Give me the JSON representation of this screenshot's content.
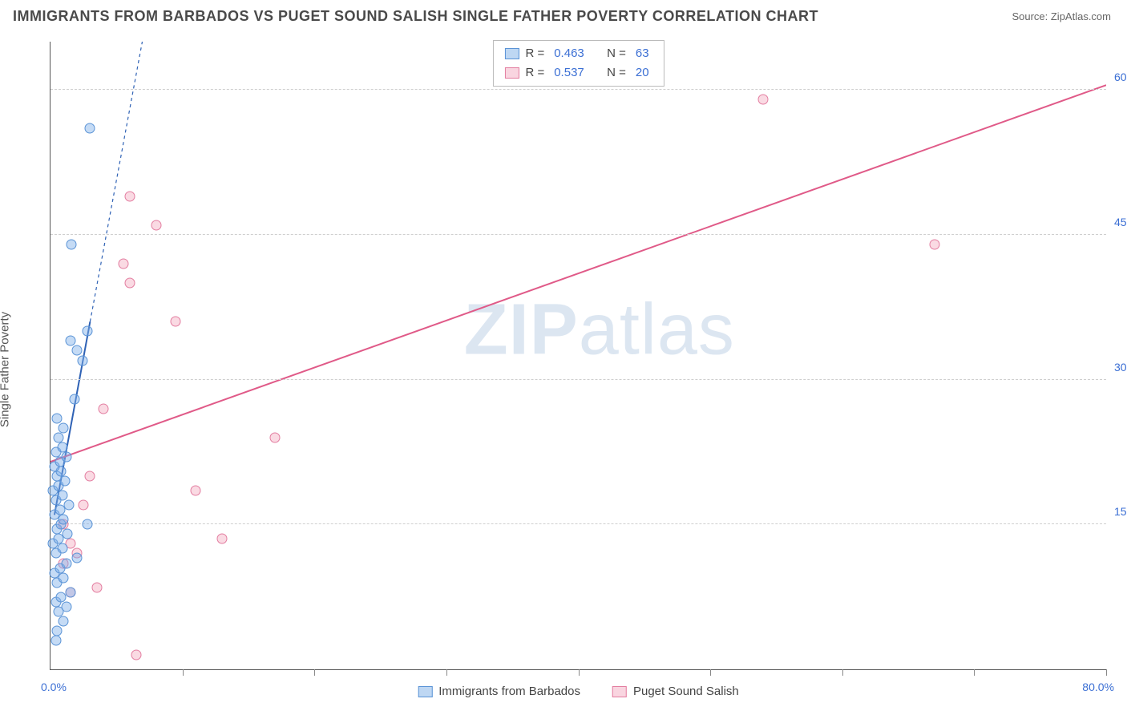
{
  "header": {
    "title": "IMMIGRANTS FROM BARBADOS VS PUGET SOUND SALISH SINGLE FATHER POVERTY CORRELATION CHART",
    "source_label": "Source: ",
    "source_value": "ZipAtlas.com"
  },
  "yaxis": {
    "label": "Single Father Poverty"
  },
  "watermark": {
    "part1": "ZIP",
    "part2": "atlas"
  },
  "chart": {
    "type": "scatter",
    "xlim": [
      0,
      80
    ],
    "ylim": [
      0,
      65
    ],
    "x_origin_label": "0.0%",
    "x_max_label": "80.0%",
    "y_ticks": [
      {
        "v": 15,
        "label": "15.0%"
      },
      {
        "v": 30,
        "label": "30.0%"
      },
      {
        "v": 45,
        "label": "45.0%"
      },
      {
        "v": 60,
        "label": "60.0%"
      }
    ],
    "x_tick_positions": [
      10,
      20,
      30,
      40,
      50,
      60,
      70,
      80
    ],
    "background_color": "#ffffff",
    "grid_color": "#cfcfcf",
    "series": {
      "blue": {
        "label": "Immigrants from Barbados",
        "color_fill": "rgba(126,175,232,0.45)",
        "color_stroke": "#5a93d6",
        "R": "0.463",
        "N": "63",
        "trend": {
          "x1": 0.3,
          "y1": 16,
          "x2": 3.0,
          "y2": 36,
          "dash_x2": 9,
          "dash_y2": 80,
          "color": "#2f62b5",
          "width": 2
        },
        "points": [
          [
            0.4,
            3
          ],
          [
            0.5,
            4
          ],
          [
            1.0,
            5
          ],
          [
            0.6,
            6
          ],
          [
            1.2,
            6.5
          ],
          [
            0.4,
            7
          ],
          [
            0.8,
            7.5
          ],
          [
            1.5,
            8
          ],
          [
            0.5,
            9
          ],
          [
            1.0,
            9.5
          ],
          [
            0.3,
            10
          ],
          [
            0.7,
            10.5
          ],
          [
            1.2,
            11
          ],
          [
            2.0,
            11.5
          ],
          [
            0.4,
            12
          ],
          [
            0.9,
            12.5
          ],
          [
            0.2,
            13
          ],
          [
            0.6,
            13.5
          ],
          [
            1.3,
            14
          ],
          [
            0.5,
            14.5
          ],
          [
            0.8,
            15
          ],
          [
            2.8,
            15
          ],
          [
            1.0,
            15.5
          ],
          [
            0.3,
            16
          ],
          [
            0.7,
            16.5
          ],
          [
            1.4,
            17
          ],
          [
            0.4,
            17.5
          ],
          [
            0.9,
            18
          ],
          [
            0.2,
            18.5
          ],
          [
            0.6,
            19
          ],
          [
            1.1,
            19.5
          ],
          [
            0.5,
            20
          ],
          [
            0.8,
            20.5
          ],
          [
            0.3,
            21
          ],
          [
            0.7,
            21.5
          ],
          [
            1.2,
            22
          ],
          [
            0.4,
            22.5
          ],
          [
            0.9,
            23
          ],
          [
            0.6,
            24
          ],
          [
            1.0,
            25
          ],
          [
            0.5,
            26
          ],
          [
            1.8,
            28
          ],
          [
            2.4,
            32
          ],
          [
            2.0,
            33
          ],
          [
            1.5,
            34
          ],
          [
            2.8,
            35
          ],
          [
            1.6,
            44
          ],
          [
            3.0,
            56
          ]
        ]
      },
      "pink": {
        "label": "Puget Sound Salish",
        "color_fill": "rgba(243,172,193,0.45)",
        "color_stroke": "#e37da0",
        "R": "0.537",
        "N": "20",
        "trend": {
          "x1": 0,
          "y1": 21.5,
          "x2": 80,
          "y2": 60.5,
          "color": "#e05a88",
          "width": 2
        },
        "points": [
          [
            6.5,
            1.5
          ],
          [
            1.5,
            8
          ],
          [
            3.5,
            8.5
          ],
          [
            1.0,
            11
          ],
          [
            2.0,
            12
          ],
          [
            1.5,
            13
          ],
          [
            13,
            13.5
          ],
          [
            1.0,
            15
          ],
          [
            2.5,
            17
          ],
          [
            11,
            18.5
          ],
          [
            3.0,
            20
          ],
          [
            17,
            24
          ],
          [
            4.0,
            27
          ],
          [
            9.5,
            36
          ],
          [
            6.0,
            40
          ],
          [
            5.5,
            42
          ],
          [
            8.0,
            46
          ],
          [
            6.0,
            49
          ],
          [
            67,
            44
          ],
          [
            54,
            59
          ]
        ]
      }
    }
  },
  "legend_top": {
    "rows": [
      {
        "sw": "blue",
        "r_label": "R =",
        "r": "0.463",
        "n_label": "N =",
        "n": "63"
      },
      {
        "sw": "pink",
        "r_label": "R =",
        "r": "0.537",
        "n_label": "N =",
        "n": "20"
      }
    ]
  },
  "legend_bottom": {
    "items": [
      {
        "sw": "blue",
        "label": "Immigrants from Barbados"
      },
      {
        "sw": "pink",
        "label": "Puget Sound Salish"
      }
    ]
  }
}
